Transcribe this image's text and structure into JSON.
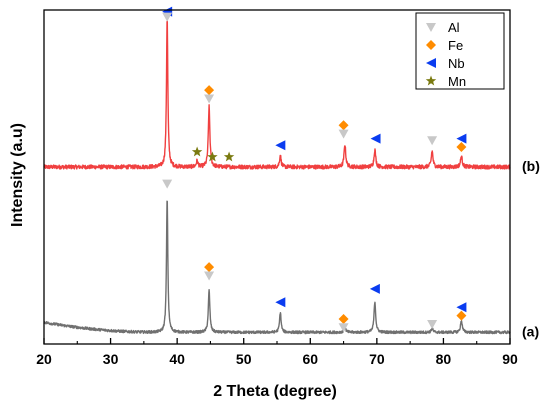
{
  "chart_data": {
    "type": "line",
    "xlabel": "2 Theta (degree)",
    "ylabel": "Intensity (a.u)",
    "xlim": [
      20,
      90
    ],
    "x_ticks": [
      20,
      30,
      40,
      50,
      60,
      70,
      80,
      90
    ],
    "grid": false,
    "legend_position": "top-right",
    "legend": [
      {
        "name": "Al",
        "marker": "down-triangle",
        "color": "#c8c8c8"
      },
      {
        "name": "Fe",
        "marker": "diamond",
        "color": "#ff8c00"
      },
      {
        "name": "Nb",
        "marker": "left-triangle",
        "color": "#0a3cf0"
      },
      {
        "name": "Mn",
        "marker": "star",
        "color": "#7a7a10"
      }
    ],
    "series": [
      {
        "name": "(b)",
        "color": "#f04040",
        "baseline": 0.53,
        "noise": 0.006,
        "peaks": [
          {
            "x": 38.5,
            "h": 0.45,
            "w": 0.12
          },
          {
            "x": 43.0,
            "h": 0.018,
            "w": 0.15
          },
          {
            "x": 44.8,
            "h": 0.18,
            "w": 0.14
          },
          {
            "x": 55.5,
            "h": 0.035,
            "w": 0.14
          },
          {
            "x": 65.2,
            "h": 0.068,
            "w": 0.15
          },
          {
            "x": 69.7,
            "h": 0.052,
            "w": 0.15
          },
          {
            "x": 78.3,
            "h": 0.048,
            "w": 0.15
          },
          {
            "x": 82.7,
            "h": 0.032,
            "w": 0.16
          }
        ]
      },
      {
        "name": "(a)",
        "color": "#707070",
        "baseline": 0.035,
        "slope_start": 0.05,
        "noise": 0.004,
        "peaks": [
          {
            "x": 38.5,
            "h": 0.405,
            "w": 0.12
          },
          {
            "x": 44.8,
            "h": 0.125,
            "w": 0.14
          },
          {
            "x": 55.5,
            "h": 0.06,
            "w": 0.14
          },
          {
            "x": 65.2,
            "h": 0.016,
            "w": 0.15
          },
          {
            "x": 69.7,
            "h": 0.092,
            "w": 0.15
          },
          {
            "x": 78.3,
            "h": 0.012,
            "w": 0.15
          },
          {
            "x": 82.7,
            "h": 0.035,
            "w": 0.16
          }
        ]
      }
    ],
    "annotations": [
      {
        "series": "(b)",
        "phase": "Nb",
        "x": 38.5,
        "y": 0.995
      },
      {
        "series": "(b)",
        "phase": "Al",
        "x": 38.5,
        "y": 0.98
      },
      {
        "series": "(b)",
        "phase": "Fe",
        "x": 44.8,
        "y": 0.76
      },
      {
        "series": "(b)",
        "phase": "Al",
        "x": 44.8,
        "y": 0.735
      },
      {
        "series": "(b)",
        "phase": "Mn",
        "x": 43.0,
        "y": 0.575
      },
      {
        "series": "(b)",
        "phase": "Mn",
        "x": 45.3,
        "y": 0.56
      },
      {
        "series": "(b)",
        "phase": "Mn",
        "x": 47.8,
        "y": 0.56
      },
      {
        "series": "(b)",
        "phase": "Nb",
        "x": 55.5,
        "y": 0.595
      },
      {
        "series": "(b)",
        "phase": "Fe",
        "x": 65.0,
        "y": 0.655
      },
      {
        "series": "(b)",
        "phase": "Al",
        "x": 65.0,
        "y": 0.63
      },
      {
        "series": "(b)",
        "phase": "Nb",
        "x": 69.8,
        "y": 0.615
      },
      {
        "series": "(b)",
        "phase": "Al",
        "x": 78.3,
        "y": 0.61
      },
      {
        "series": "(b)",
        "phase": "Nb",
        "x": 82.7,
        "y": 0.615
      },
      {
        "series": "(b)",
        "phase": "Fe",
        "x": 82.7,
        "y": 0.59
      },
      {
        "series": "(a)",
        "phase": "Al",
        "x": 38.5,
        "y": 0.48
      },
      {
        "series": "(a)",
        "phase": "Fe",
        "x": 44.8,
        "y": 0.23
      },
      {
        "series": "(a)",
        "phase": "Al",
        "x": 44.8,
        "y": 0.205
      },
      {
        "series": "(a)",
        "phase": "Nb",
        "x": 55.5,
        "y": 0.125
      },
      {
        "series": "(a)",
        "phase": "Fe",
        "x": 65.0,
        "y": 0.075
      },
      {
        "series": "(a)",
        "phase": "Al",
        "x": 65.0,
        "y": 0.05
      },
      {
        "series": "(a)",
        "phase": "Nb",
        "x": 69.7,
        "y": 0.165
      },
      {
        "series": "(a)",
        "phase": "Al",
        "x": 78.3,
        "y": 0.06
      },
      {
        "series": "(a)",
        "phase": "Nb",
        "x": 82.7,
        "y": 0.11
      },
      {
        "series": "(a)",
        "phase": "Fe",
        "x": 82.7,
        "y": 0.085
      }
    ]
  }
}
